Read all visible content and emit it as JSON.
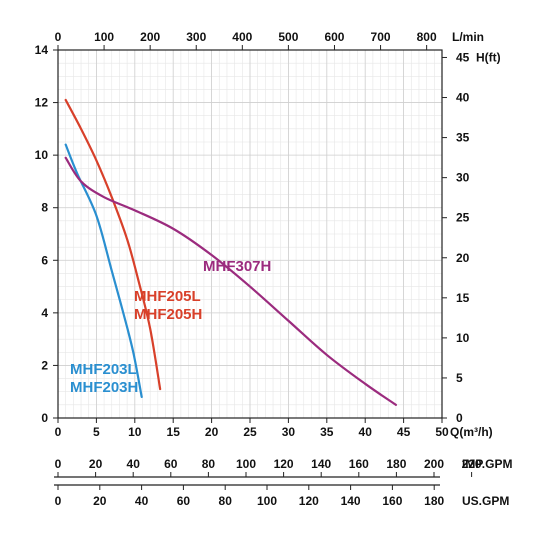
{
  "chart_data": {
    "type": "line",
    "x_axis": {
      "label": "Q(m³/h)",
      "range": [
        0,
        50
      ],
      "ticks": [
        "0",
        "5",
        "10",
        "15",
        "20",
        "25",
        "30",
        "35",
        "40",
        "45",
        "50"
      ]
    },
    "y_axis": {
      "label": "",
      "range": [
        0,
        14
      ],
      "ticks": [
        "0",
        "2",
        "4",
        "6",
        "8",
        "10",
        "12",
        "14"
      ]
    },
    "y2_axis": {
      "label": "H(ft)",
      "ticks": [
        "0",
        "5",
        "10",
        "15",
        "20",
        "25",
        "30",
        "35",
        "40",
        "45"
      ]
    },
    "x2_axis": {
      "label": "L/min",
      "ticks": [
        "0",
        "100",
        "200",
        "300",
        "400",
        "500",
        "600",
        "700",
        "800"
      ]
    },
    "imp_gpm_axis": {
      "label": "IMP.GPM",
      "ticks": [
        "0",
        "20",
        "40",
        "60",
        "80",
        "100",
        "120",
        "140",
        "160",
        "180",
        "200",
        "220"
      ]
    },
    "us_gpm_axis": {
      "label": "US.GPM",
      "ticks": [
        "0",
        "20",
        "40",
        "60",
        "80",
        "100",
        "120",
        "140",
        "160",
        "180"
      ]
    },
    "grid": true,
    "series": [
      {
        "label_lines": [
          "MHF203L",
          "MHF203H"
        ],
        "color": "#2a8fd0",
        "points": [
          [
            1,
            10.4
          ],
          [
            2.5,
            9.3
          ],
          [
            5,
            7.7
          ],
          [
            7,
            5.6
          ],
          [
            8.5,
            4.0
          ],
          [
            9.8,
            2.5
          ],
          [
            10.9,
            0.8
          ]
        ]
      },
      {
        "label_lines": [
          "MHF205L",
          "MHF205H"
        ],
        "color": "#d8402a",
        "points": [
          [
            1,
            12.1
          ],
          [
            3,
            11.0
          ],
          [
            5,
            9.8
          ],
          [
            7,
            8.4
          ],
          [
            9,
            6.8
          ],
          [
            10.5,
            5.2
          ],
          [
            12,
            3.4
          ],
          [
            13.3,
            1.1
          ]
        ]
      },
      {
        "label_lines": [
          "MHF307H"
        ],
        "color": "#9b2b7e",
        "points": [
          [
            1,
            9.9
          ],
          [
            3,
            9.0
          ],
          [
            6,
            8.4
          ],
          [
            10,
            7.9
          ],
          [
            15,
            7.2
          ],
          [
            20,
            6.2
          ],
          [
            25,
            5.0
          ],
          [
            30,
            3.7
          ],
          [
            35,
            2.4
          ],
          [
            40,
            1.3
          ],
          [
            44,
            0.5
          ]
        ]
      }
    ]
  }
}
